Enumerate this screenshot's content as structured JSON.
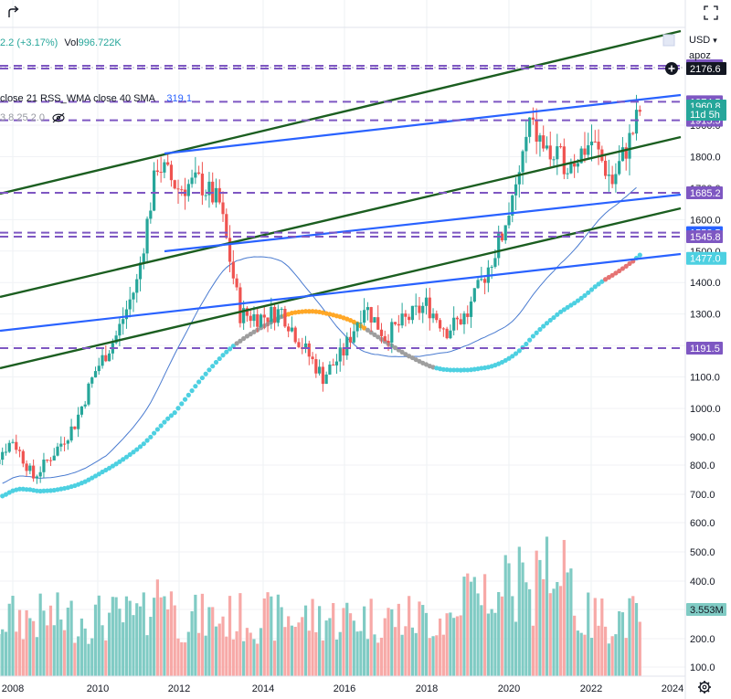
{
  "header": {
    "change_text": "2.2 (+3.17%)",
    "vol_label": "Vol",
    "vol_value": "996.722K",
    "indicator_text": "close 21 RSS_WMA close 40 SMA",
    "indicator_value": "319.1",
    "indicator2_text": "3 8 25 2.0",
    "currency": "USD",
    "currency_caret": "▾",
    "scale_mode": "apoz",
    "undo_icon": "redo-arrow-icon",
    "fullscreen_icon": "fullscreen-icon",
    "add_icon": "plus-circle-icon",
    "settings_icon": "gear-icon"
  },
  "colors": {
    "up": "#26a69a",
    "down": "#ef5350",
    "vol_up": "#80cbc4",
    "vol_down": "#f7a9a7",
    "channel_green": "#1b5e20",
    "trend_blue": "#2962ff",
    "dashed_purple": "#7e57c2",
    "sma": "#4a7bd0",
    "wma_cyan": "#4dd0e1",
    "wma_orange": "#ffa726",
    "wma_gray": "#9e9e9e"
  },
  "chart_data": {
    "type": "candlestick",
    "x_ticks": [
      "2008",
      "2010",
      "2012",
      "2014",
      "2016",
      "2018",
      "2020",
      "2022",
      "2024"
    ],
    "y_ticks": [
      100,
      200,
      300,
      400,
      500,
      600,
      700,
      800,
      900,
      1000,
      1100,
      1200,
      1300,
      1400,
      1500,
      1600,
      1700,
      1800,
      1900
    ],
    "y_tick_labels": [
      "100.0",
      "200.0",
      "300.0",
      "400.0",
      "500.0",
      "600.0",
      "700.0",
      "800.0",
      "900.0",
      "1000.0",
      "1100.0",
      "1200.0",
      "1300.0",
      "1400.0",
      "1500.0",
      "1600.0",
      "1700.0",
      "1800.0",
      "1900.0"
    ],
    "ylim": [
      80,
      2280
    ],
    "horizontal_levels": [
      {
        "value": 2088.6,
        "label": "2088.6",
        "bg": "#7e57c2"
      },
      {
        "value": 2079.9,
        "label": "2079.9",
        "bg": "#2962ff"
      },
      {
        "value": 1974.5,
        "label": "1974.5",
        "bg": "#7e57c2"
      },
      {
        "value": 1915.5,
        "label": "1915.5",
        "bg": "#7e57c2"
      },
      {
        "value": 1685.2,
        "label": "1685.2",
        "bg": "#7e57c2"
      },
      {
        "value": 1558.5,
        "label": "1558.5",
        "bg": "#2962ff"
      },
      {
        "value": 1545.8,
        "label": "1545.8",
        "bg": "#7e57c2"
      },
      {
        "value": 1191.5,
        "label": "1191.5",
        "bg": "#7e57c2"
      }
    ],
    "price_tags": [
      {
        "label": "2176.6",
        "bg": "#131722",
        "value": 2176.6
      },
      {
        "label": "1960.8",
        "bg": "#26a69a",
        "value": 1960.8
      },
      {
        "label": "11d 5h",
        "bg": "#26a69a",
        "value": 1935
      },
      {
        "label": "1477.0",
        "bg": "#4dd0e1",
        "value": 1477.0
      },
      {
        "label": "3.553M",
        "bg": "#80cbc4",
        "value": 300
      }
    ],
    "price_points": [
      {
        "x": "2007.0",
        "y": 750
      },
      {
        "x": "2007.5",
        "y": 830
      },
      {
        "x": "2008.0",
        "y": 900
      },
      {
        "x": "2008.5",
        "y": 780
      },
      {
        "x": "2009.0",
        "y": 860
      },
      {
        "x": "2009.5",
        "y": 950
      },
      {
        "x": "2010.0",
        "y": 1120
      },
      {
        "x": "2010.5",
        "y": 1230
      },
      {
        "x": "2011.0",
        "y": 1400
      },
      {
        "x": "2011.5",
        "y": 1780
      },
      {
        "x": "2012.0",
        "y": 1700
      },
      {
        "x": "2012.5",
        "y": 1720
      },
      {
        "x": "2013.0",
        "y": 1650
      },
      {
        "x": "2013.5",
        "y": 1300
      },
      {
        "x": "2014.0",
        "y": 1290
      },
      {
        "x": "2014.5",
        "y": 1310
      },
      {
        "x": "2015.0",
        "y": 1200
      },
      {
        "x": "2015.5",
        "y": 1100
      },
      {
        "x": "2016.0",
        "y": 1180
      },
      {
        "x": "2016.5",
        "y": 1330
      },
      {
        "x": "2017.0",
        "y": 1230
      },
      {
        "x": "2017.5",
        "y": 1280
      },
      {
        "x": "2018.0",
        "y": 1330
      },
      {
        "x": "2018.5",
        "y": 1250
      },
      {
        "x": "2019.0",
        "y": 1300
      },
      {
        "x": "2019.5",
        "y": 1450
      },
      {
        "x": "2020.0",
        "y": 1600
      },
      {
        "x": "2020.5",
        "y": 1900
      },
      {
        "x": "2021.0",
        "y": 1800
      },
      {
        "x": "2021.5",
        "y": 1780
      },
      {
        "x": "2022.0",
        "y": 1850
      },
      {
        "x": "2022.5",
        "y": 1720
      },
      {
        "x": "2023.0",
        "y": 1880
      },
      {
        "x": "2023.2",
        "y": 1960
      }
    ],
    "volume_axis": [
      {
        "value": 100,
        "label": "100.0"
      },
      {
        "value": 200,
        "label": "200.0"
      },
      {
        "value": 300,
        "label": "300.0"
      },
      {
        "value": 400,
        "label": "400.0"
      },
      {
        "value": 500,
        "label": "500.0"
      },
      {
        "value": 600,
        "label": "600.0"
      },
      {
        "value": 700,
        "label": "700.0"
      },
      {
        "value": 800,
        "label": "800.0"
      },
      {
        "value": 900,
        "label": "900.0"
      },
      {
        "value": 1000,
        "label": "1000.0"
      }
    ]
  }
}
